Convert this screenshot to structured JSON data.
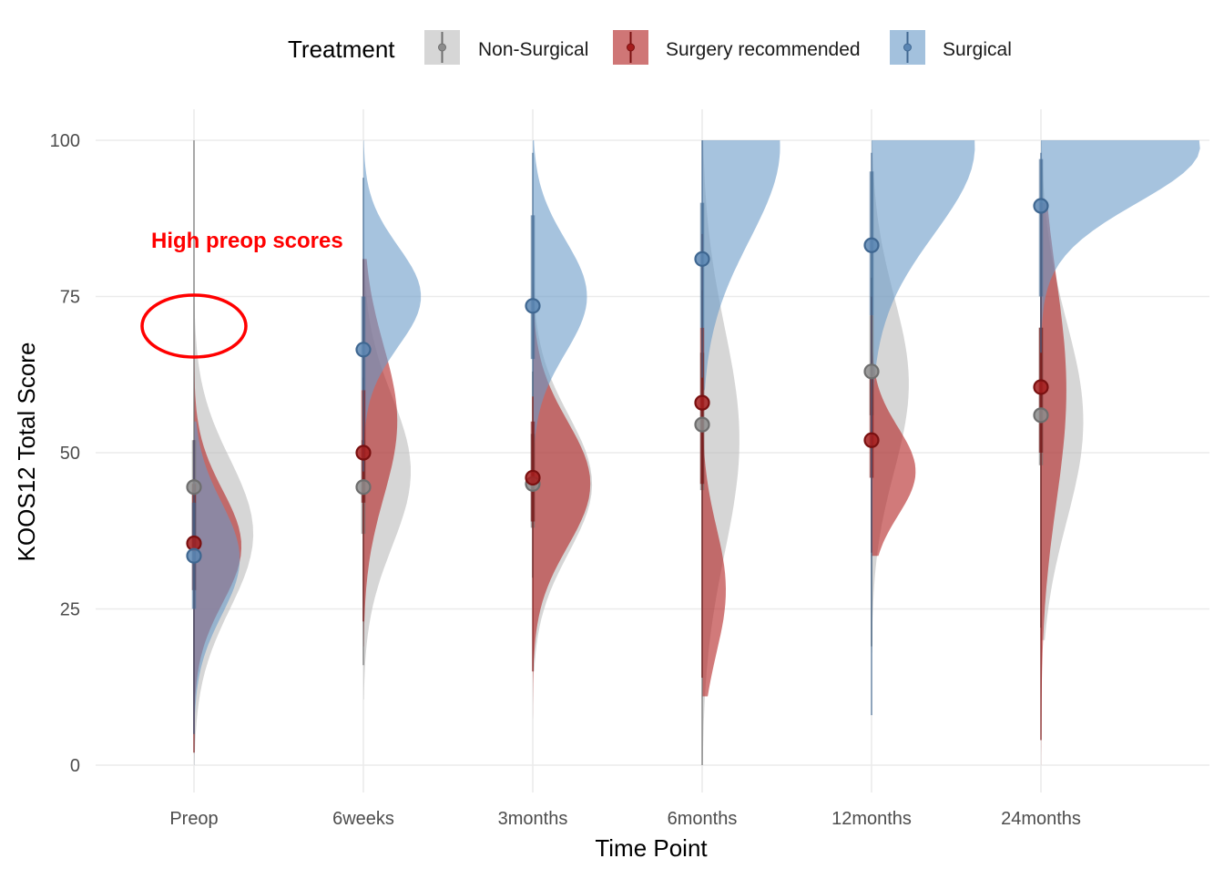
{
  "chart_data": {
    "type": "raincloud",
    "xlabel": "Time Point",
    "ylabel": "KOOS12 Total Score",
    "ylim": [
      0,
      100
    ],
    "y_ticks": [
      0,
      25,
      50,
      75,
      100
    ],
    "categories": [
      "Preop",
      "6weeks",
      "3months",
      "6months",
      "12months",
      "24months"
    ],
    "legend": {
      "title": "Treatment",
      "position": "top",
      "entries": [
        "Non-Surgical",
        "Surgery recommended",
        "Surgical"
      ]
    },
    "grid": true,
    "colors": {
      "Non-Surgical": "#bdbdbd",
      "Surgery recommended": "#b22222",
      "Surgical": "#6a9bc8"
    },
    "series": [
      {
        "name": "Non-Surgical",
        "point_colors": {
          "fill": "#8c8c8c",
          "stroke": "#6e6e6e"
        },
        "median": [
          44.5,
          44.5,
          45,
          54.5,
          63,
          56
        ],
        "q_inner": [
          [
            35,
            52
          ],
          [
            37,
            52
          ],
          [
            38,
            53
          ],
          [
            44,
            66
          ],
          [
            56,
            72
          ],
          [
            48,
            70
          ]
        ],
        "q_outer": [
          [
            5,
            100
          ],
          [
            16,
            62
          ],
          [
            30,
            63
          ],
          [
            0,
            76
          ],
          [
            19,
            78
          ],
          [
            22,
            75
          ]
        ],
        "density_range": [
          [
            0,
            100
          ],
          [
            10.5,
            100
          ],
          [
            15,
            100
          ],
          [
            0,
            100
          ],
          [
            18,
            100
          ],
          [
            20,
            100
          ]
        ],
        "density_peak": [
          37,
          47,
          45,
          52,
          61,
          55
        ],
        "density_width": [
          0.35,
          0.28,
          0.35,
          0.22,
          0.22,
          0.25
        ],
        "density_sigma": [
          12,
          12,
          11,
          18,
          14,
          16
        ]
      },
      {
        "name": "Surgery recommended",
        "point_colors": {
          "fill": "#a51c1c",
          "stroke": "#7a1010"
        },
        "median": [
          35.5,
          50,
          46,
          58,
          52,
          60.5
        ],
        "q_inner": [
          [
            28,
            45
          ],
          [
            42,
            60
          ],
          [
            39,
            55
          ],
          [
            45,
            70
          ],
          [
            46,
            62
          ],
          [
            50,
            70
          ]
        ],
        "q_outer": [
          [
            2,
            52
          ],
          [
            23,
            81
          ],
          [
            15,
            59
          ],
          [
            14,
            85
          ],
          [
            34,
            75
          ],
          [
            4,
            90
          ]
        ],
        "density_range": [
          [
            2,
            72
          ],
          [
            19,
            81
          ],
          [
            6,
            77
          ],
          [
            11,
            85
          ],
          [
            33.5,
            75.5
          ],
          [
            0,
            90
          ]
        ],
        "density_peak": [
          35,
          55,
          45,
          28,
          47,
          60
        ],
        "density_width": [
          0.28,
          0.2,
          0.34,
          0.14,
          0.26,
          0.15
        ],
        "density_sigma": [
          9,
          12,
          10,
          10,
          7,
          18
        ]
      },
      {
        "name": "Surgical",
        "point_colors": {
          "fill": "#5b86b3",
          "stroke": "#3f6791"
        },
        "median": [
          33.5,
          66.5,
          73.5,
          81,
          83.2,
          89.5
        ],
        "q_inner": [
          [
            25,
            42
          ],
          [
            60,
            75
          ],
          [
            65,
            88
          ],
          [
            70,
            90
          ],
          [
            72,
            95
          ],
          [
            75,
            97
          ]
        ],
        "q_outer": [
          [
            5,
            52
          ],
          [
            47,
            94
          ],
          [
            59,
            98
          ],
          [
            62,
            100
          ],
          [
            8,
            98
          ],
          [
            66,
            98
          ]
        ],
        "density_range": [
          [
            0,
            55
          ],
          [
            36,
            100
          ],
          [
            48,
            100
          ],
          [
            60,
            100
          ],
          [
            8,
            100
          ],
          [
            21,
            100
          ]
        ],
        "density_peak": [
          33,
          75,
          75,
          99,
          99,
          99
        ],
        "density_width": [
          0.27,
          0.34,
          0.32,
          0.46,
          0.61,
          0.94
        ],
        "density_sigma": [
          9,
          8,
          9,
          15,
          14,
          9
        ]
      }
    ],
    "annotations": [
      {
        "text": "High preop scores",
        "color": "#ff0000",
        "x_category": "Preop",
        "y": 84
      }
    ]
  }
}
